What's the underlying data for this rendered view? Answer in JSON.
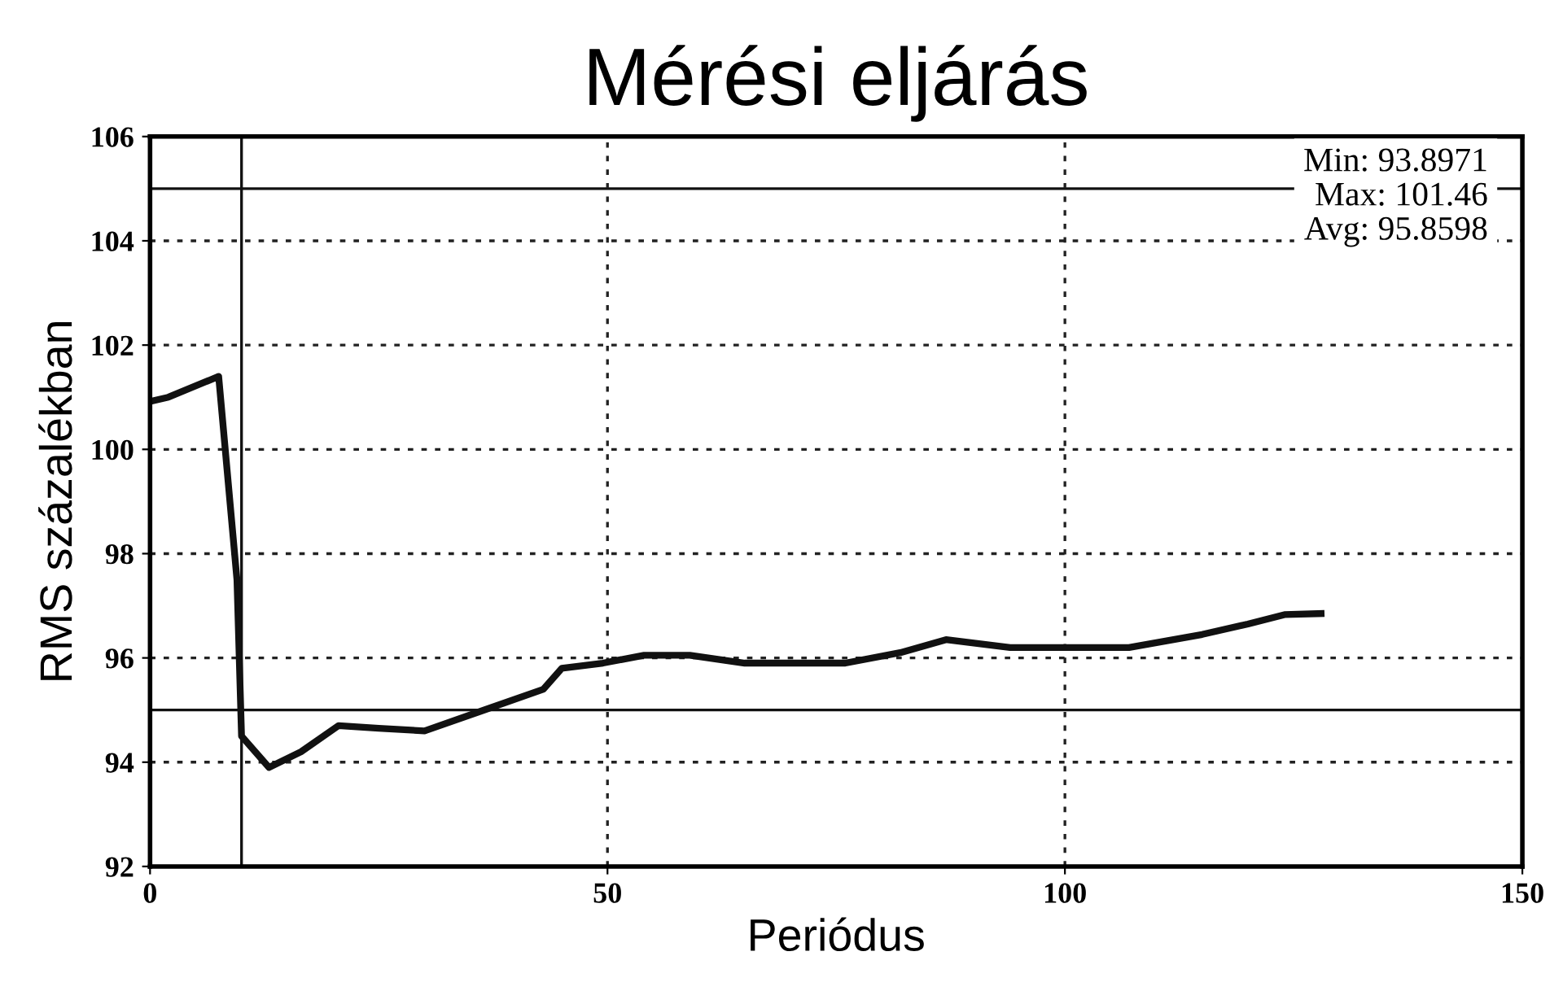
{
  "chart_data": {
    "type": "line",
    "title": "Mérési eljárás",
    "xlabel": "Periódus",
    "ylabel": "RMS százalékban",
    "x": [
      0,
      2,
      7.5,
      9.5,
      10,
      13,
      16.5,
      20.6,
      25,
      30,
      36.5,
      43,
      45,
      49.5,
      54,
      59,
      65,
      70,
      76,
      82,
      87,
      94,
      100,
      107,
      115,
      120,
      124,
      128
    ],
    "series": [
      {
        "color": "#111111",
        "values": [
          100.92,
          101.0,
          101.4,
          97.5,
          94.5,
          93.9,
          94.2,
          94.7,
          94.65,
          94.6,
          95.0,
          95.4,
          95.8,
          95.9,
          96.05,
          96.05,
          95.9,
          95.9,
          95.9,
          96.1,
          96.35,
          96.2,
          96.2,
          96.2,
          96.45,
          96.65,
          96.83,
          96.85
        ]
      }
    ],
    "xlim": [
      0,
      150
    ],
    "xticks": [
      0,
      50,
      100,
      150
    ],
    "ylim": [
      92,
      106
    ],
    "yticks": [
      92,
      94,
      96,
      98,
      100,
      102,
      104,
      106
    ],
    "grid": true,
    "line_style": "solid",
    "marker": "none",
    "ref_lines": [
      {
        "axis": "y",
        "value": 105,
        "color": "#111111"
      },
      {
        "axis": "y",
        "value": 95,
        "color": "#111111"
      },
      {
        "axis": "x",
        "value": 10,
        "color": "#111111"
      }
    ],
    "annotations": [
      "Min: 93.8971",
      "Max: 101.46",
      "Avg: 95.8598"
    ]
  }
}
